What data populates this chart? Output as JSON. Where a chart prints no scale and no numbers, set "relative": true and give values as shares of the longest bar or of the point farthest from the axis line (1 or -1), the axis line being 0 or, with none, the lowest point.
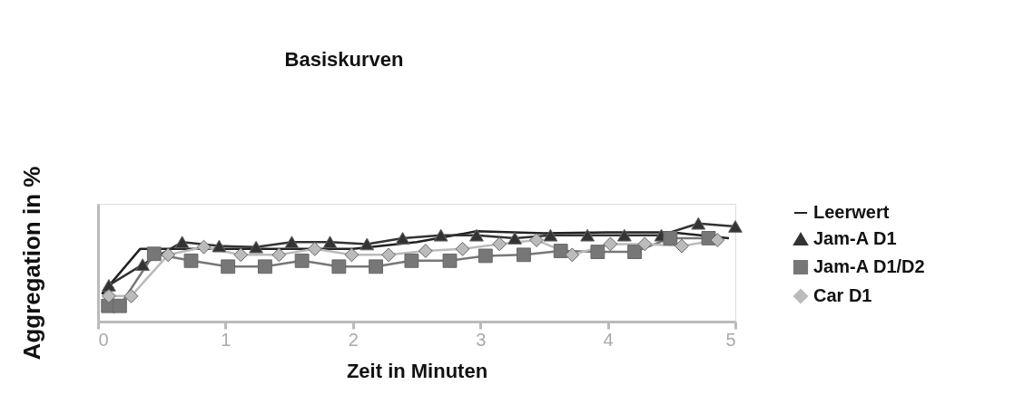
{
  "chart_data": {
    "type": "line",
    "title": "Basiskurven",
    "xlabel": "Zeit in Minuten",
    "ylabel": "Aggregation in %",
    "relative": true,
    "xlim": [
      0,
      5
    ],
    "xticks": [
      0,
      1,
      2,
      3,
      4,
      5
    ],
    "legend": "right",
    "grid": false,
    "series": [
      {
        "name": "Leerwert",
        "color": "#222222",
        "marker": "none",
        "x": [
          0.03,
          0.33,
          1.0,
          2.0,
          2.5,
          2.97,
          3.5,
          4.0,
          4.5,
          4.95
        ],
        "values": [
          0.28,
          0.74,
          0.74,
          0.74,
          0.81,
          0.92,
          0.9,
          0.91,
          0.91,
          0.85
        ]
      },
      {
        "name": "Jam-A D1",
        "color": "#333333",
        "marker": "triangle",
        "x": [
          0.085,
          0.35,
          0.66,
          0.95,
          1.24,
          1.52,
          1.82,
          2.11,
          2.39,
          2.69,
          2.97,
          3.27,
          3.55,
          3.84,
          4.13,
          4.42,
          4.71,
          5.0
        ],
        "values": [
          0.37,
          0.58,
          0.81,
          0.77,
          0.76,
          0.81,
          0.81,
          0.79,
          0.85,
          0.88,
          0.88,
          0.85,
          0.88,
          0.88,
          0.88,
          0.88,
          1.0,
          0.97
        ]
      },
      {
        "name": "Jam-A D1/D2",
        "color": "#777777",
        "marker": "square",
        "x": [
          0.08,
          0.17,
          0.44,
          0.73,
          1.02,
          1.31,
          1.6,
          1.89,
          2.18,
          2.46,
          2.76,
          3.04,
          3.34,
          3.63,
          3.92,
          4.21,
          4.49,
          4.79
        ],
        "values": [
          0.16,
          0.16,
          0.69,
          0.62,
          0.56,
          0.56,
          0.62,
          0.56,
          0.56,
          0.62,
          0.62,
          0.67,
          0.68,
          0.72,
          0.71,
          0.71,
          0.85,
          0.85
        ]
      },
      {
        "name": "Car D1",
        "color": "#bbbbbb",
        "marker": "diamond",
        "x": [
          0.085,
          0.26,
          0.55,
          0.83,
          1.12,
          1.42,
          1.7,
          1.99,
          2.28,
          2.57,
          2.86,
          3.15,
          3.44,
          3.72,
          4.02,
          4.29,
          4.58,
          4.86
        ],
        "values": [
          0.26,
          0.26,
          0.68,
          0.76,
          0.68,
          0.68,
          0.74,
          0.68,
          0.68,
          0.72,
          0.74,
          0.79,
          0.83,
          0.68,
          0.79,
          0.79,
          0.77,
          0.83
        ]
      }
    ]
  }
}
